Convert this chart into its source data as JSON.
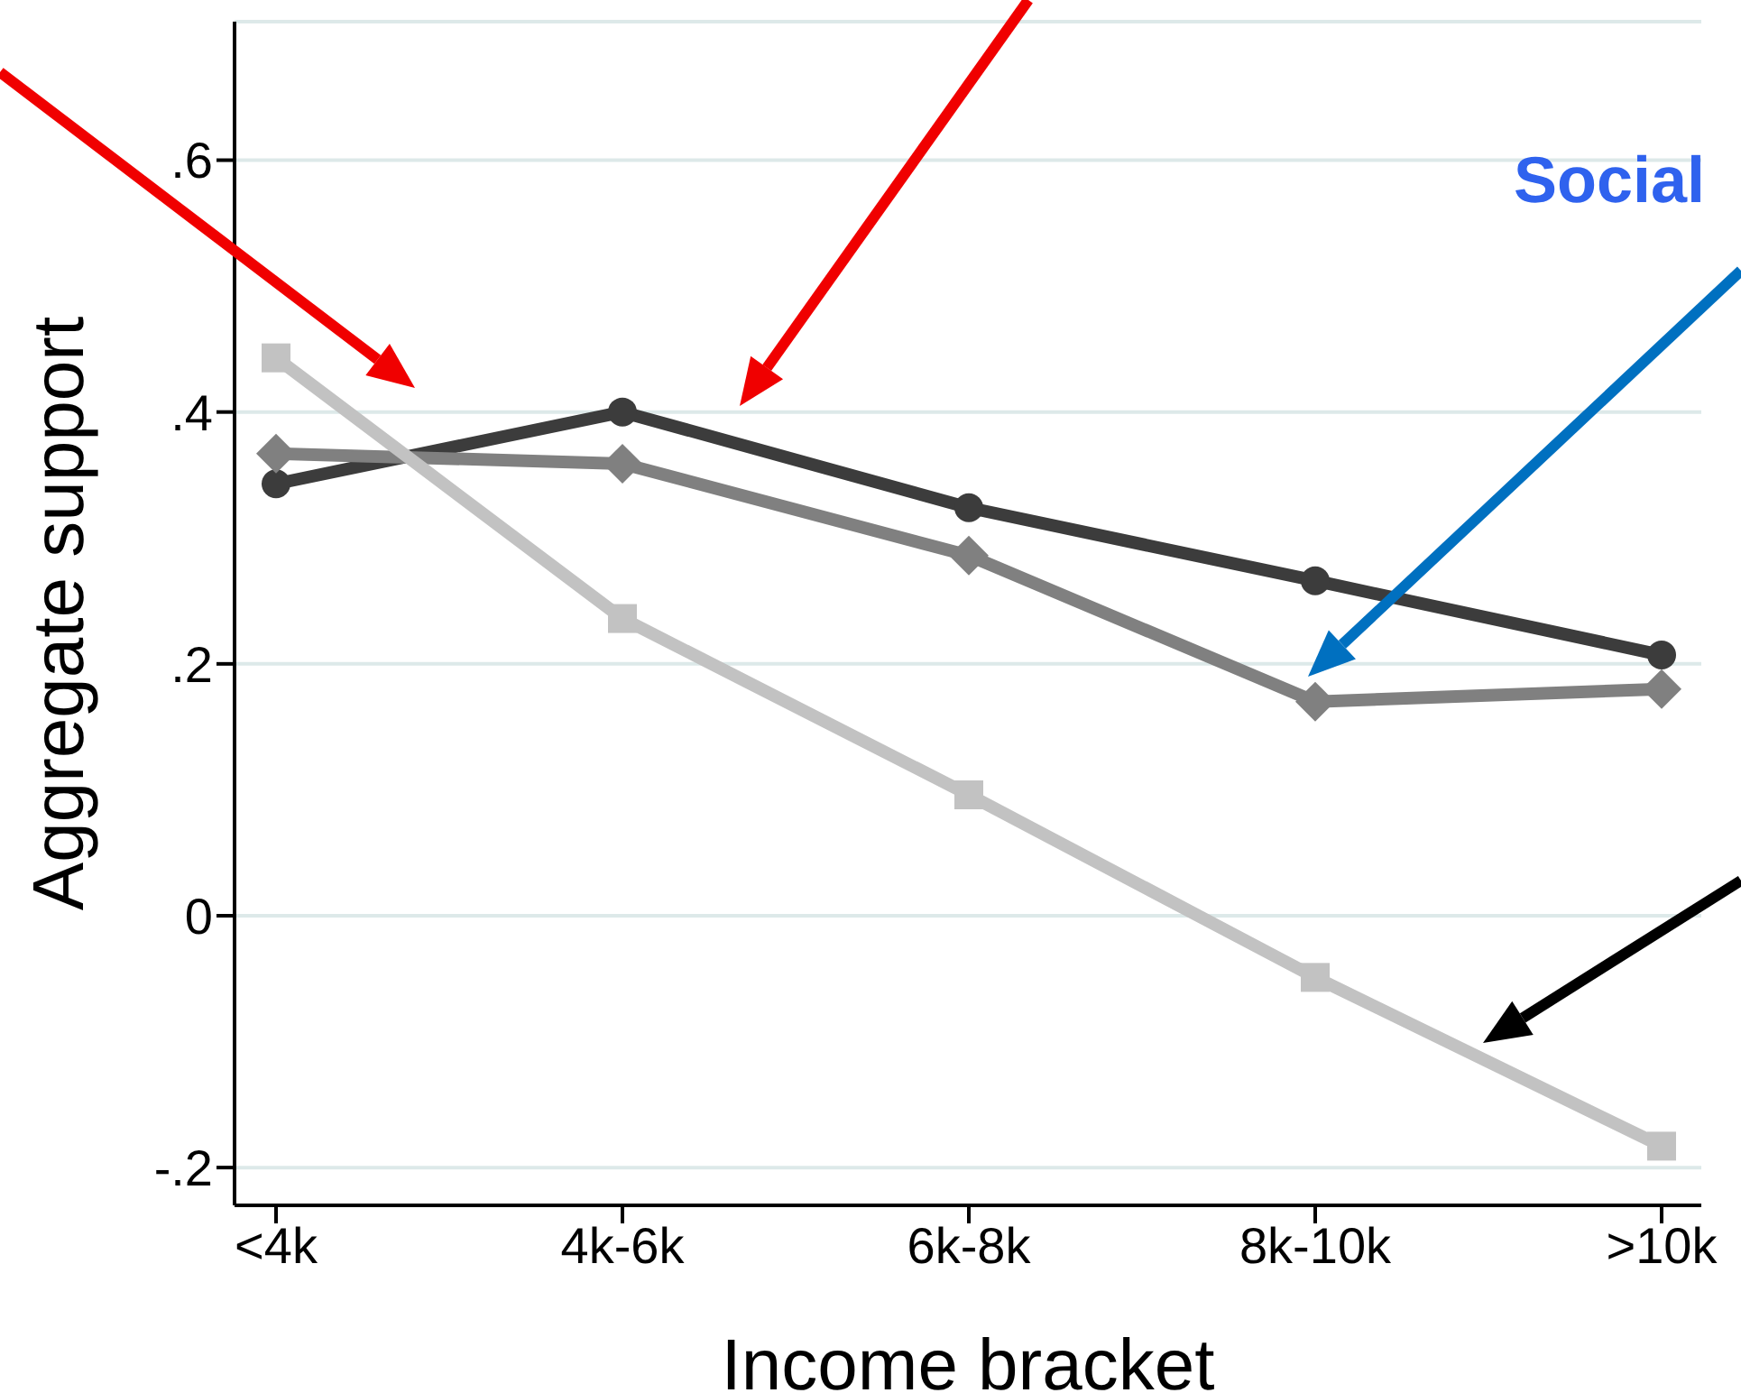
{
  "chart_data": {
    "type": "line",
    "xlabel": "Income bracket",
    "ylabel": "Aggregate support",
    "categories": [
      "<4k",
      "4k-6k",
      "6k-8k",
      "8k-10k",
      ">10k"
    ],
    "series": [
      {
        "color": "#3c3c3c",
        "marker": "circle",
        "values": [
          0.343,
          0.4,
          0.324,
          0.266,
          0.207
        ]
      },
      {
        "color": "#808080",
        "marker": "diamond",
        "values": [
          0.367,
          0.359,
          0.286,
          0.17,
          0.18
        ]
      },
      {
        "color": "#c2c2c2",
        "marker": "square",
        "values": [
          0.443,
          0.236,
          0.096,
          -0.049,
          -0.183
        ]
      }
    ],
    "ylim": [
      -0.23,
      0.71
    ],
    "yticks": [
      {
        "value": -0.2,
        "label": "-.2"
      },
      0,
      {
        "value": 0.2,
        "label": ".2"
      },
      {
        "value": 0.4,
        "label": ".4"
      },
      {
        "value": 0.6,
        "label": ".6"
      }
    ],
    "grid": "y",
    "legend": false,
    "line_style": "solid",
    "annotations": [
      "Social"
    ]
  }
}
